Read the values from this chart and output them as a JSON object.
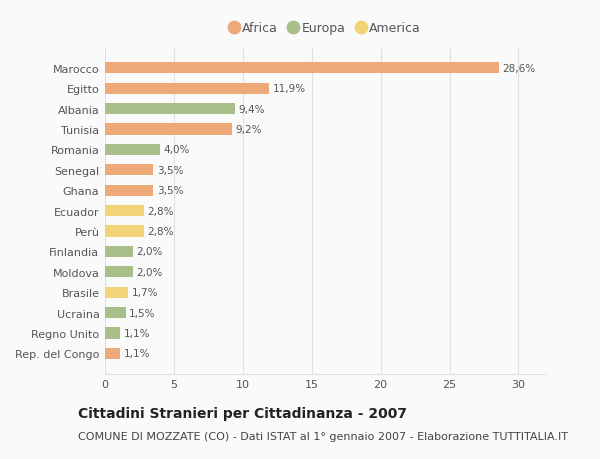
{
  "countries": [
    "Marocco",
    "Egitto",
    "Albania",
    "Tunisia",
    "Romania",
    "Senegal",
    "Ghana",
    "Ecuador",
    "Perù",
    "Finlandia",
    "Moldova",
    "Brasile",
    "Ucraina",
    "Regno Unito",
    "Rep. del Congo"
  ],
  "values": [
    28.6,
    11.9,
    9.4,
    9.2,
    4.0,
    3.5,
    3.5,
    2.8,
    2.8,
    2.0,
    2.0,
    1.7,
    1.5,
    1.1,
    1.1
  ],
  "labels": [
    "28,6%",
    "11,9%",
    "9,4%",
    "9,2%",
    "4,0%",
    "3,5%",
    "3,5%",
    "2,8%",
    "2,8%",
    "2,0%",
    "2,0%",
    "1,7%",
    "1,5%",
    "1,1%",
    "1,1%"
  ],
  "continent": [
    "Africa",
    "Africa",
    "Europa",
    "Africa",
    "Europa",
    "Africa",
    "Africa",
    "America",
    "America",
    "Europa",
    "Europa",
    "America",
    "Europa",
    "Europa",
    "Africa"
  ],
  "colors": {
    "Africa": "#EDAA78",
    "Europa": "#A8BF8A",
    "America": "#F2D478"
  },
  "title": "Cittadini Stranieri per Cittadinanza - 2007",
  "subtitle": "COMUNE DI MOZZATE (CO) - Dati ISTAT al 1° gennaio 2007 - Elaborazione TUTTITALIA.IT",
  "xlim": [
    0,
    32
  ],
  "xticks": [
    0,
    5,
    10,
    15,
    20,
    25,
    30
  ],
  "background_color": "#fafafa",
  "grid_color": "#e0e0e0",
  "title_fontsize": 10,
  "subtitle_fontsize": 8,
  "label_fontsize": 7.5,
  "tick_fontsize": 8,
  "legend_fontsize": 9,
  "bar_height": 0.55
}
